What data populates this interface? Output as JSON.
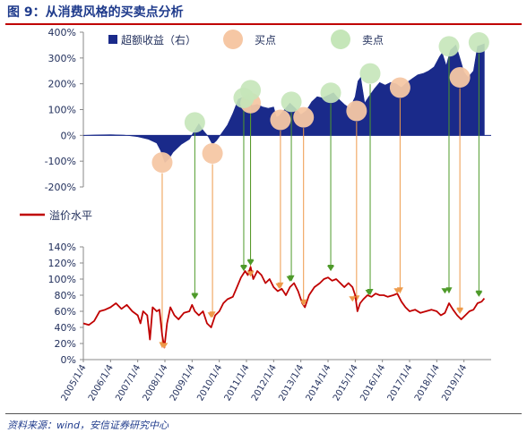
{
  "title": "图 9：从消费风格的买卖点分析",
  "source": "资料来源：wind，安信证券研究中心",
  "colors": {
    "excess": "#1a2a8a",
    "premium": "#c00000",
    "buy_fill": "#f6c7a4",
    "buy_arrow": "#ee9a4a",
    "sell_fill": "#c5e6b9",
    "sell_arrow": "#4e9a2a",
    "title": "#1f3b8c",
    "rule": "#c00000"
  },
  "chart_data": [
    {
      "type": "area",
      "ylim": [
        -200,
        400
      ],
      "yticks": [
        "400%",
        "300%",
        "200%",
        "100%",
        "0%",
        "-100%",
        "-200%"
      ],
      "ytick_values": [
        400,
        300,
        200,
        100,
        0,
        -100,
        -200
      ],
      "legend": [
        {
          "label": "超额收益（右）",
          "marker": "bar"
        },
        {
          "label": "买点",
          "marker": "buy-circle"
        },
        {
          "label": "卖点",
          "marker": "sell-circle"
        }
      ],
      "series": [
        {
          "name": "超额收益（右）",
          "points": [
            [
              2005.0,
              0
            ],
            [
              2005.5,
              2
            ],
            [
              2006.0,
              3
            ],
            [
              2006.5,
              1
            ],
            [
              2007.0,
              -5
            ],
            [
              2007.4,
              -15
            ],
            [
              2007.7,
              -30
            ],
            [
              2007.85,
              -60
            ],
            [
              2008.0,
              -105
            ],
            [
              2008.15,
              -90
            ],
            [
              2008.3,
              -65
            ],
            [
              2008.6,
              -35
            ],
            [
              2008.9,
              -15
            ],
            [
              2009.1,
              20
            ],
            [
              2009.25,
              45
            ],
            [
              2009.4,
              20
            ],
            [
              2009.6,
              -5
            ],
            [
              2009.75,
              -35
            ],
            [
              2009.9,
              -20
            ],
            [
              2010.1,
              10
            ],
            [
              2010.3,
              40
            ],
            [
              2010.5,
              85
            ],
            [
              2010.7,
              140
            ],
            [
              2010.9,
              150
            ],
            [
              2011.1,
              160
            ],
            [
              2011.2,
              115
            ],
            [
              2011.4,
              120
            ],
            [
              2011.6,
              110
            ],
            [
              2011.8,
              105
            ],
            [
              2012.0,
              110
            ],
            [
              2012.1,
              70
            ],
            [
              2012.2,
              75
            ],
            [
              2012.4,
              100
            ],
            [
              2012.6,
              125
            ],
            [
              2012.8,
              105
            ],
            [
              2013.0,
              80
            ],
            [
              2013.2,
              95
            ],
            [
              2013.4,
              130
            ],
            [
              2013.6,
              150
            ],
            [
              2013.8,
              145
            ],
            [
              2014.0,
              155
            ],
            [
              2014.2,
              165
            ],
            [
              2014.4,
              140
            ],
            [
              2014.6,
              120
            ],
            [
              2014.8,
              105
            ],
            [
              2015.0,
              150
            ],
            [
              2015.1,
              210
            ],
            [
              2015.2,
              225
            ],
            [
              2015.35,
              125
            ],
            [
              2015.5,
              150
            ],
            [
              2015.7,
              180
            ],
            [
              2015.9,
              205
            ],
            [
              2016.1,
              195
            ],
            [
              2016.3,
              205
            ],
            [
              2016.5,
              200
            ],
            [
              2016.7,
              185
            ],
            [
              2016.9,
              205
            ],
            [
              2017.1,
              220
            ],
            [
              2017.3,
              235
            ],
            [
              2017.5,
              240
            ],
            [
              2017.7,
              250
            ],
            [
              2017.9,
              265
            ],
            [
              2018.1,
              305
            ],
            [
              2018.2,
              320
            ],
            [
              2018.35,
              270
            ],
            [
              2018.5,
              330
            ],
            [
              2018.7,
              350
            ],
            [
              2018.85,
              300
            ],
            [
              2019.0,
              245
            ],
            [
              2019.15,
              225
            ],
            [
              2019.35,
              250
            ],
            [
              2019.5,
              345
            ],
            [
              2019.75,
              355
            ]
          ]
        }
      ],
      "buy_points": [
        {
          "x": 2007.9,
          "y": -105
        },
        {
          "x": 2009.75,
          "y": -70
        },
        {
          "x": 2011.15,
          "y": 125
        },
        {
          "x": 2012.25,
          "y": 60
        },
        {
          "x": 2013.1,
          "y": 70
        },
        {
          "x": 2015.05,
          "y": 95
        },
        {
          "x": 2016.65,
          "y": 185
        },
        {
          "x": 2018.85,
          "y": 225
        }
      ],
      "sell_points": [
        {
          "x": 2009.1,
          "y": 50
        },
        {
          "x": 2010.9,
          "y": 145
        },
        {
          "x": 2011.15,
          "y": 175
        },
        {
          "x": 2012.65,
          "y": 130
        },
        {
          "x": 2014.1,
          "y": 165
        },
        {
          "x": 2015.55,
          "y": 240
        },
        {
          "x": 2018.45,
          "y": 345
        },
        {
          "x": 2019.55,
          "y": 360
        }
      ]
    },
    {
      "type": "line",
      "ylim": [
        0,
        140
      ],
      "yticks": [
        "140%",
        "120%",
        "100%",
        "80%",
        "60%",
        "40%",
        "20%",
        "0%"
      ],
      "ytick_values": [
        140,
        120,
        100,
        80,
        60,
        40,
        20,
        0
      ],
      "x_categories": [
        "2005/1/4",
        "2006/1/4",
        "2007/1/4",
        "2008/1/4",
        "2009/1/4",
        "2010/1/4",
        "2011/1/4",
        "2012/1/4",
        "2013/1/4",
        "2014/1/4",
        "2015/1/4",
        "2016/1/4",
        "2017/1/4",
        "2018/1/4",
        "2019/1/4"
      ],
      "xlim": [
        2005.0,
        2020.0
      ],
      "legend": [
        {
          "label": "溢价水平",
          "marker": "line"
        }
      ],
      "series": [
        {
          "name": "溢价水平",
          "points": [
            [
              2005.0,
              45
            ],
            [
              2005.2,
              43
            ],
            [
              2005.4,
              48
            ],
            [
              2005.6,
              60
            ],
            [
              2005.8,
              62
            ],
            [
              2006.0,
              65
            ],
            [
              2006.2,
              70
            ],
            [
              2006.4,
              63
            ],
            [
              2006.6,
              68
            ],
            [
              2006.8,
              60
            ],
            [
              2007.0,
              55
            ],
            [
              2007.1,
              45
            ],
            [
              2007.2,
              60
            ],
            [
              2007.35,
              55
            ],
            [
              2007.45,
              25
            ],
            [
              2007.55,
              65
            ],
            [
              2007.7,
              60
            ],
            [
              2007.8,
              62
            ],
            [
              2007.9,
              30
            ],
            [
              2007.98,
              15
            ],
            [
              2008.08,
              45
            ],
            [
              2008.2,
              65
            ],
            [
              2008.35,
              55
            ],
            [
              2008.5,
              50
            ],
            [
              2008.7,
              58
            ],
            [
              2008.9,
              60
            ],
            [
              2009.0,
              68
            ],
            [
              2009.1,
              60
            ],
            [
              2009.25,
              55
            ],
            [
              2009.4,
              60
            ],
            [
              2009.55,
              45
            ],
            [
              2009.7,
              40
            ],
            [
              2009.85,
              55
            ],
            [
              2010.0,
              60
            ],
            [
              2010.15,
              70
            ],
            [
              2010.3,
              75
            ],
            [
              2010.5,
              78
            ],
            [
              2010.65,
              90
            ],
            [
              2010.8,
              102
            ],
            [
              2010.95,
              110
            ],
            [
              2011.05,
              105
            ],
            [
              2011.15,
              115
            ],
            [
              2011.25,
              100
            ],
            [
              2011.4,
              110
            ],
            [
              2011.55,
              105
            ],
            [
              2011.7,
              95
            ],
            [
              2011.85,
              100
            ],
            [
              2012.0,
              90
            ],
            [
              2012.15,
              85
            ],
            [
              2012.3,
              88
            ],
            [
              2012.45,
              80
            ],
            [
              2012.6,
              90
            ],
            [
              2012.75,
              95
            ],
            [
              2012.9,
              85
            ],
            [
              2013.05,
              70
            ],
            [
              2013.15,
              65
            ],
            [
              2013.3,
              80
            ],
            [
              2013.5,
              90
            ],
            [
              2013.7,
              95
            ],
            [
              2013.85,
              100
            ],
            [
              2014.0,
              102
            ],
            [
              2014.15,
              98
            ],
            [
              2014.3,
              100
            ],
            [
              2014.45,
              95
            ],
            [
              2014.6,
              90
            ],
            [
              2014.75,
              95
            ],
            [
              2014.9,
              90
            ],
            [
              2015.0,
              80
            ],
            [
              2015.08,
              60
            ],
            [
              2015.18,
              70
            ],
            [
              2015.3,
              75
            ],
            [
              2015.45,
              80
            ],
            [
              2015.6,
              78
            ],
            [
              2015.75,
              82
            ],
            [
              2015.9,
              80
            ],
            [
              2016.05,
              80
            ],
            [
              2016.2,
              78
            ],
            [
              2016.4,
              80
            ],
            [
              2016.55,
              82
            ],
            [
              2016.7,
              72
            ],
            [
              2016.85,
              65
            ],
            [
              2017.0,
              60
            ],
            [
              2017.2,
              62
            ],
            [
              2017.4,
              58
            ],
            [
              2017.6,
              60
            ],
            [
              2017.8,
              62
            ],
            [
              2018.0,
              60
            ],
            [
              2018.15,
              55
            ],
            [
              2018.3,
              58
            ],
            [
              2018.45,
              70
            ],
            [
              2018.6,
              62
            ],
            [
              2018.75,
              55
            ],
            [
              2018.9,
              50
            ],
            [
              2019.05,
              55
            ],
            [
              2019.2,
              60
            ],
            [
              2019.35,
              62
            ],
            [
              2019.5,
              70
            ],
            [
              2019.65,
              72
            ],
            [
              2019.75,
              76
            ]
          ]
        }
      ],
      "buy_markers": [
        {
          "x": 2007.98,
          "y": 14
        },
        {
          "x": 2009.7,
          "y": 52
        },
        {
          "x": 2011.15,
          "y": 103
        },
        {
          "x": 2012.2,
          "y": 88
        },
        {
          "x": 2013.1,
          "y": 67
        },
        {
          "x": 2014.9,
          "y": 72
        },
        {
          "x": 2016.55,
          "y": 82
        },
        {
          "x": 2018.85,
          "y": 57
        }
      ],
      "sell_markers": [
        {
          "x": 2009.1,
          "y": 75
        },
        {
          "x": 2010.9,
          "y": 110
        },
        {
          "x": 2011.15,
          "y": 117
        },
        {
          "x": 2012.6,
          "y": 97
        },
        {
          "x": 2014.1,
          "y": 110
        },
        {
          "x": 2015.5,
          "y": 80
        },
        {
          "x": 2018.3,
          "y": 82
        },
        {
          "x": 2019.55,
          "y": 78
        }
      ]
    }
  ]
}
